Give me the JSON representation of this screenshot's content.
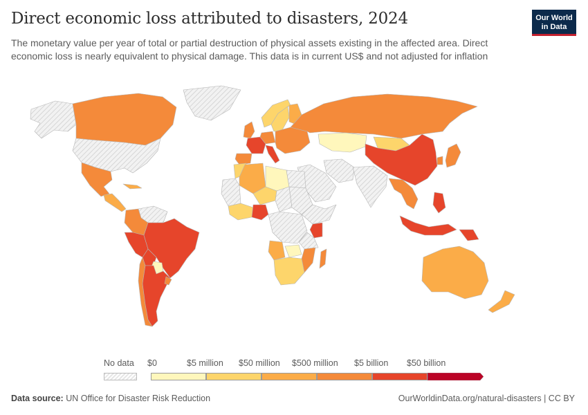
{
  "header": {
    "title": "Direct economic loss attributed to disasters, 2024",
    "subtitle": "The monetary value per year of total or partial destruction of physical assets existing in the affected area. Direct economic loss is nearly equivalent to physical damage. This data is in current US$ and not adjusted for inflation",
    "logo_line1": "Our World",
    "logo_line2": "in Data"
  },
  "legend": {
    "no_data_label": "No data",
    "bins": [
      {
        "label": "$0",
        "color": "#fff7bc"
      },
      {
        "label": "$5 million",
        "color": "#fdd56b"
      },
      {
        "label": "$50 million",
        "color": "#fbac48"
      },
      {
        "label": "$500 million",
        "color": "#f48a3a"
      },
      {
        "label": "$5 billion",
        "color": "#e6452b"
      },
      {
        "label": "$50 billion",
        "color": "#bb0326"
      }
    ]
  },
  "colors": {
    "no_data": "#e8e8e8",
    "border": "#b5b5b5",
    "c1": "#fff7bc",
    "c2": "#fdd56b",
    "c3": "#fbac48",
    "c4": "#f48a3a",
    "c5": "#e6452b"
  },
  "map": {
    "region_colors": {
      "Canada": "c4",
      "Greenland": "no_data",
      "Alaska": "no_data",
      "United States": "no_data",
      "Mexico": "c4",
      "Central America": "c3",
      "Cuba": "c3",
      "Colombia": "c4",
      "Venezuela": "no_data",
      "Brazil": "c5",
      "Peru": "c5",
      "Bolivia": "c5",
      "Paraguay": "c1",
      "Argentina": "c5",
      "Chile": "c4",
      "Uruguay": "c4",
      "Norway": "c2",
      "Sweden": "c2",
      "Finland": "c3",
      "United Kingdom": "c4",
      "France": "c5",
      "Spain": "c4",
      "Germany": "c4",
      "Italy": "c5",
      "Eastern Europe": "c4",
      "Russia": "c4",
      "Kazakhstan": "c1",
      "Mongolia": "c2",
      "China": "c5",
      "Japan": "c4",
      "South Korea": "c4",
      "India": "no_data",
      "Southeast Asia": "c4",
      "Indonesia": "c5",
      "Philippines": "c5",
      "Papua New Guinea": "c5",
      "Middle East": "no_data",
      "Iran": "no_data",
      "Australia": "c3",
      "New Zealand": "c3",
      "Algeria": "c3",
      "Morocco": "c2",
      "Libya": "c1",
      "Egypt": "no_data",
      "Niger": "c2",
      "Chad": "no_data",
      "Nigeria": "c5",
      "Sahel West": "no_data",
      "Sudan": "no_data",
      "Ethiopia": "no_data",
      "Kenya": "c5",
      "DR Congo": "no_data",
      "Angola": "c3",
      "Tanzania": "no_data",
      "Mozambique": "c4",
      "Madagascar": "c4",
      "Southern Africa": "c2",
      "Zambia": "c1",
      "West Africa": "c2"
    }
  },
  "footer": {
    "source_prefix": "Data source:",
    "source": "UN Office for Disaster Risk Reduction",
    "link": "OurWorldinData.org/natural-disasters | CC BY"
  }
}
